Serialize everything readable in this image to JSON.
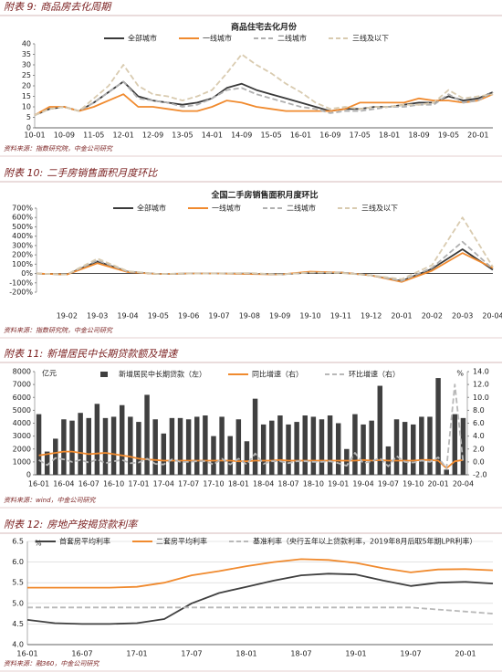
{
  "figures": [
    {
      "label": "附表 9:",
      "title": "商品房去化周期",
      "source": "资料来源：指数研究院，中金公司研究"
    },
    {
      "label": "附表 10:",
      "title": "二手房销售面积月度环比",
      "source": "资料来源：指数研究院，中金公司研究"
    },
    {
      "label": "附表 11:",
      "title": "新增居民中长期贷款额及增速",
      "source": "资料来源：wind，中金公司研究"
    },
    {
      "label": "附表 12:",
      "title": "房地产按揭贷款利率",
      "source": "资料来源：融360，中金公司研究"
    }
  ],
  "chart_data": [
    {
      "type": "line",
      "title": "商品住宅去化月份",
      "categories": [
        "10-01",
        null,
        "10-09",
        null,
        "11-05",
        null,
        "12-01",
        null,
        "12-09",
        null,
        "13-05",
        null,
        "14-01",
        null,
        "14-09",
        null,
        "15-05",
        null,
        "16-01",
        null,
        "16-09",
        null,
        "17-05",
        null,
        "18-01",
        null,
        "18-09",
        null,
        "19-05",
        null,
        "20-01",
        null
      ],
      "ylim": [
        0,
        40
      ],
      "yticks": [
        0,
        5,
        10,
        15,
        20,
        25,
        30,
        35,
        40
      ],
      "grid": false,
      "series": [
        {
          "name": "全部城市",
          "color": "#3a3a3a",
          "values": [
            6,
            9,
            10,
            8,
            12,
            17,
            22,
            15,
            13,
            12,
            11,
            12,
            14,
            19,
            21,
            18,
            16,
            14,
            12,
            10,
            8,
            9,
            9,
            10,
            10,
            11,
            12,
            12,
            15,
            13,
            14,
            17
          ]
        },
        {
          "name": "一线城市",
          "color": "#f08a2e",
          "values": [
            6,
            10,
            10,
            8,
            10,
            13,
            16,
            10,
            10,
            9,
            8,
            8,
            10,
            13,
            12,
            10,
            9,
            8,
            8,
            8,
            8,
            9,
            12,
            12,
            12,
            12,
            14,
            13,
            13,
            12,
            13,
            16
          ]
        },
        {
          "name": "二线城市",
          "color": "#b0b0b0",
          "dash": true,
          "values": [
            6,
            9,
            10,
            8,
            12,
            17,
            22,
            14,
            13,
            12,
            10,
            11,
            14,
            18,
            19,
            16,
            14,
            12,
            10,
            9,
            7,
            8,
            8,
            9,
            10,
            10,
            11,
            11,
            16,
            12,
            13,
            17
          ]
        },
        {
          "name": "三线及以下",
          "color": "#d9cbb0",
          "dash": true,
          "values": [
            6,
            9,
            10,
            8,
            14,
            20,
            30,
            20,
            16,
            15,
            13,
            15,
            18,
            26,
            35,
            30,
            26,
            21,
            17,
            12,
            9,
            10,
            9,
            10,
            10,
            11,
            11,
            12,
            18,
            14,
            15,
            16
          ]
        }
      ]
    },
    {
      "type": "line",
      "title": "全国二手房销售面积月度环比",
      "categories": [
        null,
        "19-02",
        "19-03",
        "19-04",
        "19-05",
        "19-06",
        "19-07",
        "19-08",
        "19-09",
        "19-10",
        "19-11",
        "19-12",
        "20-01",
        "20-02",
        "20-03",
        "20-04"
      ],
      "ylim": [
        -200,
        700
      ],
      "yticks": [
        {
          "value": -200,
          "label": "-200%"
        },
        {
          "value": -100,
          "label": "-100%"
        },
        {
          "value": 0,
          "label": "0%"
        },
        {
          "value": 100,
          "label": "100%"
        },
        {
          "value": 200,
          "label": "200%"
        },
        {
          "value": 300,
          "label": "300%"
        },
        {
          "value": 400,
          "label": "400%"
        },
        {
          "value": 500,
          "label": "500%"
        },
        {
          "value": 600,
          "label": "600%"
        },
        {
          "value": 700,
          "label": "700%"
        }
      ],
      "grid": false,
      "series": [
        {
          "name": "全部城市",
          "color": "#3a3a3a",
          "values": [
            0,
            -10,
            130,
            20,
            -5,
            0,
            0,
            0,
            -10,
            10,
            10,
            -20,
            -80,
            50,
            260,
            40
          ]
        },
        {
          "name": "一线城市",
          "color": "#f08a2e",
          "values": [
            0,
            -10,
            110,
            15,
            -5,
            0,
            0,
            -5,
            -10,
            20,
            10,
            -20,
            -90,
            30,
            220,
            60
          ]
        },
        {
          "name": "二线城市",
          "color": "#b0b0b0",
          "dash": true,
          "values": [
            0,
            -10,
            140,
            20,
            -5,
            0,
            0,
            0,
            -10,
            10,
            10,
            -20,
            -80,
            60,
            340,
            50
          ]
        },
        {
          "name": "三线及以下",
          "color": "#d9cbb0",
          "dash": true,
          "values": [
            0,
            -10,
            160,
            25,
            -5,
            0,
            0,
            5,
            -10,
            10,
            5,
            -20,
            -60,
            90,
            600,
            70
          ]
        }
      ]
    },
    {
      "type": "bar",
      "y_unit": "亿元",
      "y2_unit": "%",
      "categories": [
        "16-01",
        null,
        null,
        "16-04",
        null,
        null,
        "16-07",
        null,
        null,
        "16-10",
        null,
        null,
        "17-01",
        null,
        null,
        "17-04",
        null,
        null,
        "17-07",
        null,
        null,
        "17-10",
        null,
        null,
        "18-01",
        null,
        null,
        "18-04",
        null,
        null,
        "18-07",
        null,
        null,
        "18-10",
        null,
        null,
        "19-01",
        null,
        null,
        "19-04",
        null,
        null,
        "19-07",
        null,
        null,
        "19-10",
        null,
        null,
        "20-01",
        null,
        null,
        "20-04"
      ],
      "ylim": [
        0,
        8000
      ],
      "yticks": [
        0,
        1000,
        2000,
        3000,
        4000,
        5000,
        6000,
        7000,
        8000
      ],
      "y2lim": [
        -2,
        14
      ],
      "y2ticks": [
        {
          "value": -2,
          "label": "-2.0"
        },
        {
          "value": 0,
          "label": "0.0"
        },
        {
          "value": 2,
          "label": "2.0"
        },
        {
          "value": 4,
          "label": "4.0"
        },
        {
          "value": 6,
          "label": "6.0"
        },
        {
          "value": 8,
          "label": "8.0"
        },
        {
          "value": 10,
          "label": "10.0"
        },
        {
          "value": 12,
          "label": "12.0"
        },
        {
          "value": 14,
          "label": "14.0"
        }
      ],
      "grid": false,
      "series": [
        {
          "name": "新增居民中长期贷款（左）",
          "color": "#404040",
          "type": "bar",
          "values": [
            4700,
            1800,
            2800,
            4300,
            4200,
            4800,
            4400,
            5500,
            4400,
            4500,
            5400,
            4500,
            4100,
            6200,
            4300,
            3200,
            4400,
            4400,
            4300,
            4500,
            4600,
            3000,
            4500,
            3000,
            4300,
            2600,
            5900,
            3900,
            4200,
            4600,
            3900,
            4100,
            4600,
            4500,
            4300,
            4600,
            4000,
            2000,
            4700,
            3900,
            4200,
            6900,
            2200,
            4300,
            4100,
            3900,
            4500,
            4500,
            7500,
            400,
            4700,
            4400
          ]
        },
        {
          "name": "同比增速（右）",
          "color": "#f08a2e",
          "type": "line",
          "axis": "y2",
          "values": [
            1.0,
            1.2,
            1.4,
            1.6,
            1.6,
            1.4,
            1.2,
            1.3,
            1.4,
            1.2,
            1.0,
            0.8,
            0.5,
            0.4,
            0.3,
            0.2,
            0.2,
            0.2,
            0.2,
            0.2,
            0.2,
            0.2,
            0.2,
            0.2,
            0.1,
            0.1,
            0.2,
            0.2,
            0.2,
            0.3,
            0.2,
            0.2,
            0.2,
            0.2,
            0.2,
            0.2,
            0.2,
            0.2,
            0.2,
            0.3,
            0.2,
            0.3,
            0.2,
            0.2,
            0.2,
            0.2,
            0.3,
            0.3,
            0.2,
            -1.0,
            0.1,
            0.3
          ]
        },
        {
          "name": "环比增速（右）",
          "color": "#b8b8b8",
          "type": "line",
          "axis": "y2",
          "dash": true,
          "values": [
            0.3,
            -0.5,
            0.6,
            0.4,
            0.0,
            0.3,
            -0.1,
            0.4,
            -0.2,
            0.1,
            0.3,
            -0.2,
            -0.1,
            0.5,
            -0.3,
            -0.4,
            0.4,
            0.0,
            0.0,
            0.1,
            0.1,
            -0.4,
            0.5,
            -0.4,
            0.5,
            -0.4,
            1.3,
            -0.3,
            0.1,
            0.1,
            -0.2,
            0.1,
            0.1,
            0.0,
            0.0,
            0.1,
            -0.2,
            -0.6,
            1.4,
            -0.2,
            0.1,
            0.6,
            -0.7,
            0.9,
            0.0,
            -0.1,
            0.2,
            0.0,
            0.7,
            -1.0,
            12.0,
            0.0
          ]
        }
      ]
    },
    {
      "type": "line",
      "y_unit": "%",
      "categories": [
        "16-01",
        null,
        "16-07",
        null,
        "17-01",
        null,
        "17-07",
        null,
        "18-01",
        null,
        "18-07",
        null,
        "19-01",
        null,
        "19-07",
        null,
        "20-01",
        null
      ],
      "ylim": [
        4,
        6.5
      ],
      "yticks": [
        {
          "value": 4,
          "label": "4.0"
        },
        4.5,
        {
          "value": 5,
          "label": "5.0"
        },
        5.5,
        {
          "value": 6,
          "label": "6.0"
        },
        6.5
      ],
      "grid": true,
      "series": [
        {
          "name": "首套房平均利率",
          "color": "#404040",
          "values": [
            4.6,
            4.52,
            4.5,
            4.5,
            4.52,
            4.62,
            5.0,
            5.25,
            5.4,
            5.55,
            5.68,
            5.72,
            5.7,
            5.55,
            5.42,
            5.5,
            5.52,
            5.48
          ]
        },
        {
          "name": "二套房平均利率",
          "color": "#f08a2e",
          "values": [
            5.38,
            5.38,
            5.38,
            5.38,
            5.4,
            5.5,
            5.68,
            5.78,
            5.9,
            6.0,
            6.07,
            6.05,
            5.98,
            5.85,
            5.75,
            5.82,
            5.83,
            5.8
          ]
        },
        {
          "name": "基准利率（央行五年以上贷款利率，2019年8月后取5年期LPR利率）",
          "color": "#b8b8b8",
          "dash": true,
          "values": [
            4.9,
            4.9,
            4.9,
            4.9,
            4.9,
            4.9,
            4.9,
            4.9,
            4.9,
            4.9,
            4.9,
            4.9,
            4.9,
            4.9,
            4.9,
            4.85,
            4.8,
            4.75
          ]
        }
      ]
    }
  ]
}
